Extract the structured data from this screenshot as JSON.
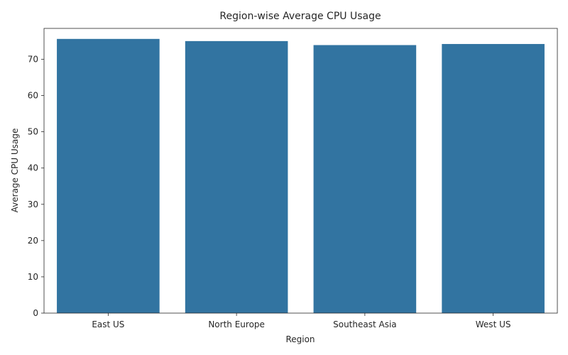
{
  "chart_data": {
    "type": "bar",
    "title": "Region-wise Average CPU Usage",
    "xlabel": "Region",
    "ylabel": "Average CPU Usage",
    "categories": [
      "East US",
      "North Europe",
      "Southeast Asia",
      "West US"
    ],
    "values": [
      75.6,
      75.0,
      73.9,
      74.2
    ],
    "ylim": [
      0,
      78.5
    ],
    "yticks": [
      0,
      10,
      20,
      30,
      40,
      50,
      60,
      70
    ],
    "grid": false,
    "bar_color": "#3274a1"
  }
}
